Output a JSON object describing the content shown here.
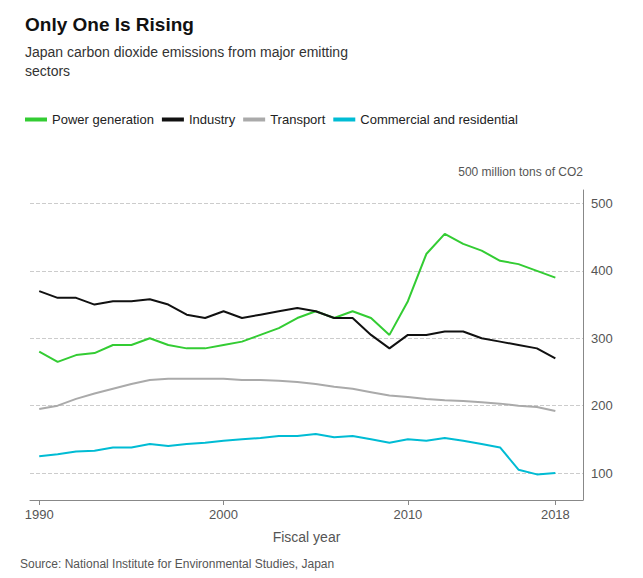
{
  "chart_data": {
    "type": "line",
    "title": "Only One Is Rising",
    "subtitle": "Japan carbon dioxide emissions from major emitting\nsectors",
    "xlabel": "Fiscal year",
    "ylabel": "500 million tons of CO2",
    "annotations": [
      "Source: National Institute for Environmental Studies, Japan"
    ],
    "x": [
      1990,
      1991,
      1992,
      1993,
      1994,
      1995,
      1996,
      1997,
      1998,
      1999,
      2000,
      2001,
      2002,
      2003,
      2004,
      2005,
      2006,
      2007,
      2008,
      2009,
      2010,
      2011,
      2012,
      2013,
      2014,
      2015,
      2016,
      2017,
      2018
    ],
    "series": [
      {
        "name": "Power generation",
        "color": "#33cc33",
        "values": [
          280,
          265,
          275,
          278,
          290,
          290,
          300,
          290,
          285,
          285,
          290,
          295,
          305,
          315,
          330,
          340,
          330,
          340,
          330,
          305,
          355,
          425,
          455,
          440,
          430,
          415,
          410,
          400,
          390
        ]
      },
      {
        "name": "Industry",
        "color": "#111111",
        "values": [
          370,
          360,
          360,
          350,
          355,
          355,
          358,
          350,
          335,
          330,
          340,
          330,
          335,
          340,
          345,
          340,
          330,
          330,
          305,
          285,
          305,
          305,
          310,
          310,
          300,
          295,
          290,
          285,
          270
        ]
      },
      {
        "name": "Transport",
        "color": "#aaaaaa",
        "values": [
          195,
          200,
          210,
          218,
          225,
          232,
          238,
          240,
          240,
          240,
          240,
          238,
          238,
          237,
          235,
          232,
          228,
          225,
          220,
          215,
          213,
          210,
          208,
          207,
          205,
          203,
          200,
          198,
          192
        ]
      },
      {
        "name": "Commercial and residential",
        "color": "#00bcd4",
        "values": [
          125,
          128,
          132,
          133,
          138,
          138,
          143,
          140,
          143,
          145,
          148,
          150,
          152,
          155,
          155,
          158,
          153,
          155,
          150,
          145,
          150,
          148,
          152,
          148,
          143,
          138,
          105,
          98,
          100
        ]
      }
    ],
    "xlim": [
      1989.5,
      2019.5
    ],
    "xticks": [
      1990,
      2000,
      2010,
      2018
    ],
    "ylim": [
      60,
      520
    ],
    "yticks": [
      100,
      200,
      300,
      400,
      500
    ],
    "grid": true,
    "legend": "upper left"
  }
}
